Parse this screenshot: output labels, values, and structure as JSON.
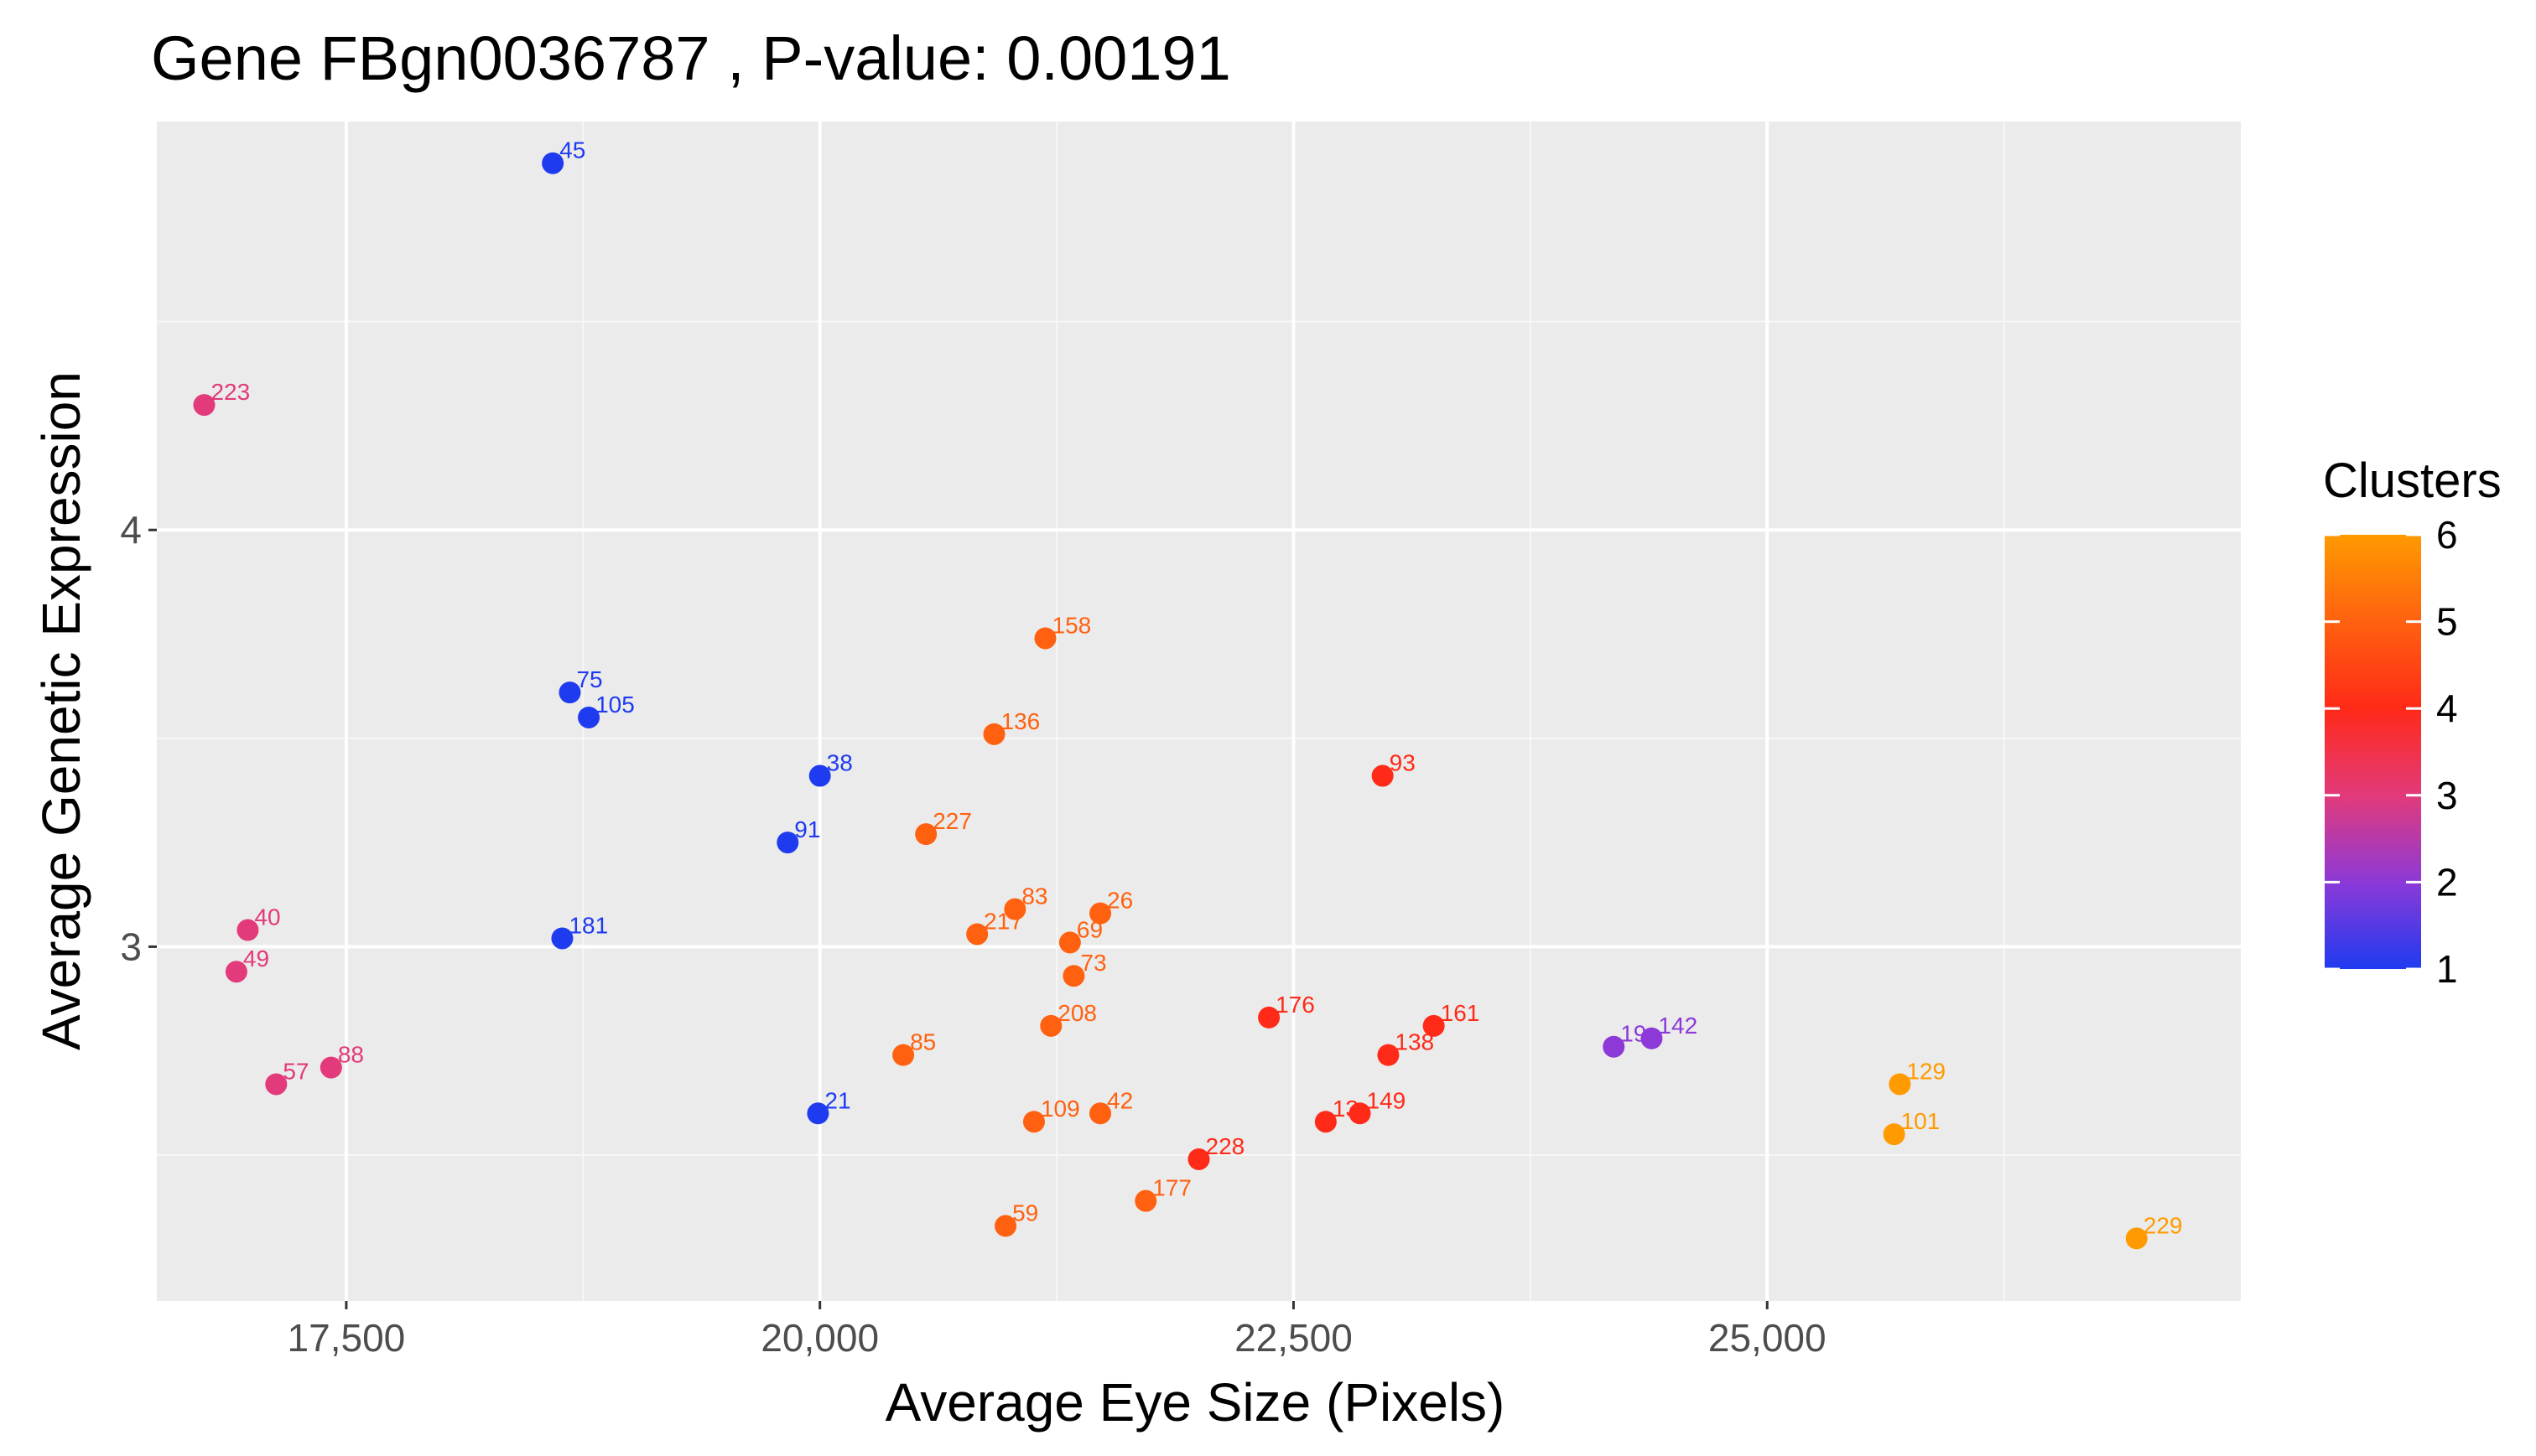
{
  "chart_data": {
    "type": "scatter",
    "title": "Gene FBgn0036787 , P-value: 0.00191",
    "xlabel": "Average Eye Size (Pixels)",
    "ylabel": "Average Genetic Expression",
    "xlim": [
      16500,
      27500
    ],
    "ylim": [
      2.15,
      4.98
    ],
    "x_ticks": [
      17500,
      20000,
      22500,
      25000
    ],
    "x_tick_labels": [
      "17,500",
      "20,000",
      "22,500",
      "25,000"
    ],
    "y_ticks": [
      3,
      4
    ],
    "y_tick_labels": [
      "3",
      "4"
    ],
    "grid": true,
    "legend": {
      "title": "Clusters",
      "placement": "right",
      "range": [
        1,
        6
      ],
      "ticks": [
        1,
        2,
        3,
        4,
        5,
        6
      ],
      "tick_labels": [
        "1",
        "2",
        "3",
        "4",
        "5",
        "6"
      ],
      "colors": {
        "low": "#1f3bf0",
        "high": "#ff9a00"
      }
    },
    "points": [
      {
        "label": "45",
        "x": 18590,
        "y": 4.88,
        "cluster": 1.0
      },
      {
        "label": "223",
        "x": 16750,
        "y": 4.3,
        "cluster": 3.0
      },
      {
        "label": "75",
        "x": 18680,
        "y": 3.61,
        "cluster": 1.0
      },
      {
        "label": "105",
        "x": 18780,
        "y": 3.55,
        "cluster": 1.0
      },
      {
        "label": "38",
        "x": 20000,
        "y": 3.41,
        "cluster": 1.0
      },
      {
        "label": "91",
        "x": 19830,
        "y": 3.25,
        "cluster": 1.0
      },
      {
        "label": "181",
        "x": 18640,
        "y": 3.02,
        "cluster": 1.0
      },
      {
        "label": "21",
        "x": 19990,
        "y": 2.6,
        "cluster": 1.0
      },
      {
        "label": "40",
        "x": 16980,
        "y": 3.04,
        "cluster": 3.0
      },
      {
        "label": "49",
        "x": 16920,
        "y": 2.94,
        "cluster": 3.0
      },
      {
        "label": "57",
        "x": 17130,
        "y": 2.67,
        "cluster": 3.0
      },
      {
        "label": "88",
        "x": 17420,
        "y": 2.71,
        "cluster": 3.0
      },
      {
        "label": "158",
        "x": 21190,
        "y": 3.74,
        "cluster": 5.0
      },
      {
        "label": "136",
        "x": 20920,
        "y": 3.51,
        "cluster": 5.0
      },
      {
        "label": "227",
        "x": 20560,
        "y": 3.27,
        "cluster": 5.0
      },
      {
        "label": "83",
        "x": 21030,
        "y": 3.09,
        "cluster": 5.0
      },
      {
        "label": "217",
        "x": 20830,
        "y": 3.03,
        "cluster": 5.0
      },
      {
        "label": "26",
        "x": 21480,
        "y": 3.08,
        "cluster": 5.0
      },
      {
        "label": "69",
        "x": 21320,
        "y": 3.01,
        "cluster": 5.0
      },
      {
        "label": "73",
        "x": 21340,
        "y": 2.93,
        "cluster": 5.0
      },
      {
        "label": "208",
        "x": 21220,
        "y": 2.81,
        "cluster": 5.0
      },
      {
        "label": "85",
        "x": 20440,
        "y": 2.74,
        "cluster": 5.0
      },
      {
        "label": "109",
        "x": 21130,
        "y": 2.58,
        "cluster": 5.0
      },
      {
        "label": "42",
        "x": 21480,
        "y": 2.6,
        "cluster": 5.0
      },
      {
        "label": "59",
        "x": 20980,
        "y": 2.33,
        "cluster": 5.0
      },
      {
        "label": "177",
        "x": 21720,
        "y": 2.39,
        "cluster": 5.0
      },
      {
        "label": "93",
        "x": 22970,
        "y": 3.41,
        "cluster": 4.0
      },
      {
        "label": "176",
        "x": 22370,
        "y": 2.83,
        "cluster": 4.0
      },
      {
        "label": "161",
        "x": 23240,
        "y": 2.81,
        "cluster": 4.0
      },
      {
        "label": "138",
        "x": 23000,
        "y": 2.74,
        "cluster": 4.0
      },
      {
        "label": "149",
        "x": 22850,
        "y": 2.6,
        "cluster": 4.0
      },
      {
        "label": "13",
        "x": 22670,
        "y": 2.58,
        "cluster": 4.0
      },
      {
        "label": "228",
        "x": 22000,
        "y": 2.49,
        "cluster": 4.0
      },
      {
        "label": "19",
        "x": 24190,
        "y": 2.76,
        "cluster": 2.0
      },
      {
        "label": "142",
        "x": 24390,
        "y": 2.78,
        "cluster": 2.0
      },
      {
        "label": "129",
        "x": 25700,
        "y": 2.67,
        "cluster": 6.0
      },
      {
        "label": "101",
        "x": 25670,
        "y": 2.55,
        "cluster": 6.0
      },
      {
        "label": "229",
        "x": 26950,
        "y": 2.3,
        "cluster": 6.0
      }
    ]
  }
}
